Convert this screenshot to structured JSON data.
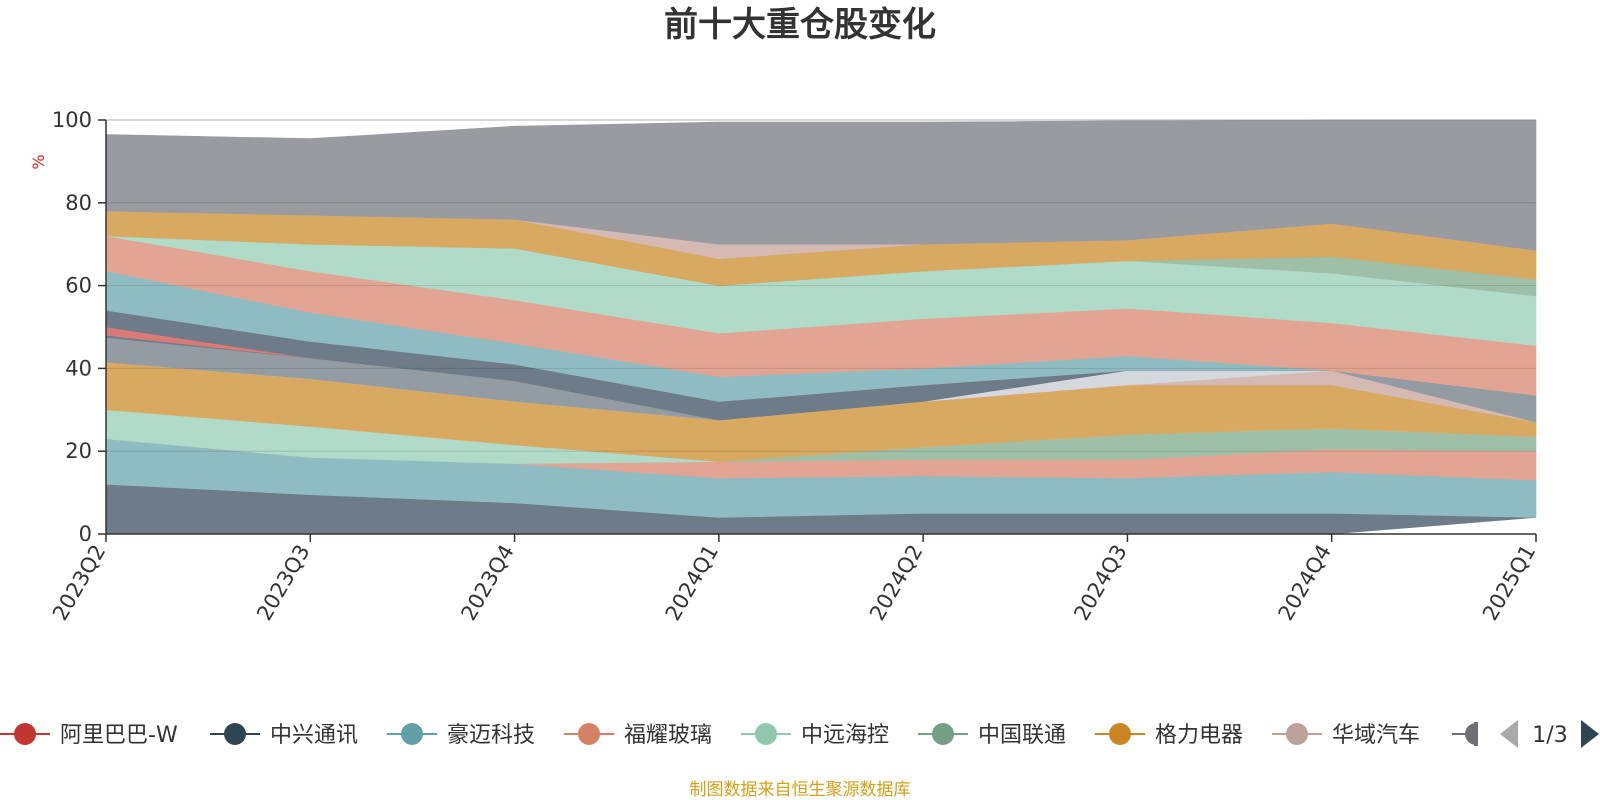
{
  "chart_data": {
    "type": "area",
    "title": "前十大重仓股变化",
    "yunit": "%",
    "ylim": [
      0,
      100
    ],
    "yticks": [
      0,
      20,
      40,
      60,
      80,
      100
    ],
    "grid": true,
    "categories": [
      "2023Q2",
      "2023Q3",
      "2023Q4",
      "2024Q1",
      "2024Q2",
      "2024Q3",
      "2024Q4",
      "2025Q1"
    ],
    "layers": [
      {
        "color": "#6e7b88",
        "lower": [
          0,
          0,
          0,
          0,
          0,
          0,
          0,
          4
        ],
        "upper": [
          12,
          9.5,
          7.5,
          4,
          5,
          5,
          5,
          4
        ]
      },
      {
        "color": "#8fbcc2",
        "lower": [
          12,
          9.5,
          7.5,
          4,
          5,
          5,
          5,
          4
        ],
        "upper": [
          23,
          18.5,
          17,
          13.5,
          14,
          13.5,
          15,
          13
        ]
      },
      {
        "color": "#e2a594",
        "lower": [
          23,
          18.5,
          17,
          13.5,
          14,
          13.5,
          15,
          13
        ],
        "upper": [
          23,
          18.5,
          17,
          17.5,
          18,
          18,
          20.5,
          20
        ]
      },
      {
        "color": "#9fbfa7",
        "lower": [
          23,
          18.5,
          17,
          17.5,
          18,
          18,
          20.5,
          20
        ],
        "upper": [
          23,
          18.5,
          17,
          17.5,
          21,
          24,
          25.5,
          23.5
        ]
      },
      {
        "color": "#b0dbc8",
        "lower": [
          23,
          18.5,
          17,
          17.5,
          21,
          24,
          25.5,
          23.5
        ],
        "upper": [
          30,
          26,
          21.5,
          17.5,
          21,
          24,
          25.5,
          23.5
        ]
      },
      {
        "color": "#d9a961",
        "lower": [
          30,
          26,
          21.5,
          17.5,
          21,
          24,
          25.5,
          23.5
        ],
        "upper": [
          41.5,
          37.5,
          32,
          27.5,
          32,
          36,
          36,
          27
        ]
      },
      {
        "color": "#d4bab3",
        "lower": [
          41.5,
          37.5,
          32,
          27.5,
          32,
          36,
          36,
          27
        ],
        "upper": [
          41.5,
          37.5,
          32,
          27.5,
          32,
          36,
          39.5,
          27
        ]
      },
      {
        "color": "#d5d9df",
        "lower": [
          41.5,
          37.5,
          32,
          27.5,
          32,
          36,
          39.5,
          27
        ],
        "upper": [
          41.5,
          37.5,
          32,
          27.5,
          32,
          39.5,
          39.5,
          27
        ]
      },
      {
        "color": "#939ca3",
        "lower": [
          41.5,
          37.5,
          32,
          27.5,
          32,
          39.5,
          39.5,
          27
        ],
        "upper": [
          47.5,
          42.5,
          37,
          27.5,
          32,
          39.5,
          39.5,
          33.5
        ]
      },
      {
        "color": "#6e7b88",
        "lower": [
          47.5,
          42.5,
          37,
          27.5,
          32,
          39.5,
          39.5,
          33.5
        ],
        "upper": [
          48,
          42.5,
          41,
          32,
          36,
          39.5,
          39.5,
          33.5
        ]
      },
      {
        "color": "#d97a76",
        "lower": [
          48,
          42.5,
          41,
          32,
          36,
          39.5,
          39.5,
          33.5
        ],
        "upper": [
          50,
          42.5,
          41,
          32,
          36,
          39.5,
          39.5,
          33.5
        ]
      },
      {
        "color": "#6e7b88",
        "lower": [
          50,
          42.5,
          41,
          32,
          36,
          39.5,
          39.5,
          33.5
        ],
        "upper": [
          54,
          46.5,
          41,
          32,
          36,
          39.5,
          39.5,
          33.5
        ]
      },
      {
        "color": "#8fbcc2",
        "lower": [
          54,
          46.5,
          41,
          32,
          36,
          39.5,
          39.5,
          33.5
        ],
        "upper": [
          63.5,
          53.5,
          46,
          38,
          40,
          43,
          39.5,
          33.5
        ]
      },
      {
        "color": "#e2a594",
        "lower": [
          63.5,
          53.5,
          46,
          38,
          40,
          43,
          39.5,
          33.5
        ],
        "upper": [
          72,
          63.5,
          56.5,
          48.5,
          52,
          54.5,
          51,
          45.5
        ]
      },
      {
        "color": "#b0dbc8",
        "lower": [
          72,
          63.5,
          56.5,
          48.5,
          52,
          54.5,
          51,
          45.5
        ],
        "upper": [
          72,
          70,
          69,
          60,
          63.5,
          66,
          63,
          57.5
        ]
      },
      {
        "color": "#9fbfa7",
        "lower": [
          72,
          70,
          69,
          60,
          63.5,
          66,
          63,
          57.5
        ],
        "upper": [
          72,
          70,
          69,
          60,
          63.5,
          66,
          67,
          61.5
        ]
      },
      {
        "color": "#d9a961",
        "lower": [
          72,
          70,
          69,
          60,
          63.5,
          66,
          67,
          61.5
        ],
        "upper": [
          78,
          77,
          76,
          66.5,
          70,
          71,
          75,
          68.5
        ]
      },
      {
        "color": "#d4bab3",
        "lower": [
          78,
          77,
          76,
          66.5,
          70,
          71,
          75,
          68.5
        ],
        "upper": [
          78,
          77,
          76,
          70,
          70,
          71,
          75,
          68.5
        ]
      },
      {
        "color": "#999ba0",
        "lower": [
          78,
          77,
          76,
          70,
          70,
          71,
          75,
          68.5
        ],
        "upper": [
          96.5,
          95.5,
          98.5,
          99.5,
          99.5,
          99.8,
          100,
          100
        ]
      }
    ]
  },
  "legend": {
    "items": [
      {
        "name": "阿里巴巴-W",
        "color": "#c23531"
      },
      {
        "name": "中兴通讯",
        "color": "#2f4554"
      },
      {
        "name": "豪迈科技",
        "color": "#61a0a8"
      },
      {
        "name": "福耀玻璃",
        "color": "#d48265"
      },
      {
        "name": "中远海控",
        "color": "#91c7ae"
      },
      {
        "name": "中国联通",
        "color": "#749f83"
      },
      {
        "name": "格力电器",
        "color": "#ca8622"
      },
      {
        "name": "华域汽车",
        "color": "#bda29a"
      }
    ],
    "partial_item_color": "#6e7074",
    "page": "1/3"
  },
  "source_note": "制图数据来自恒生聚源数据库"
}
